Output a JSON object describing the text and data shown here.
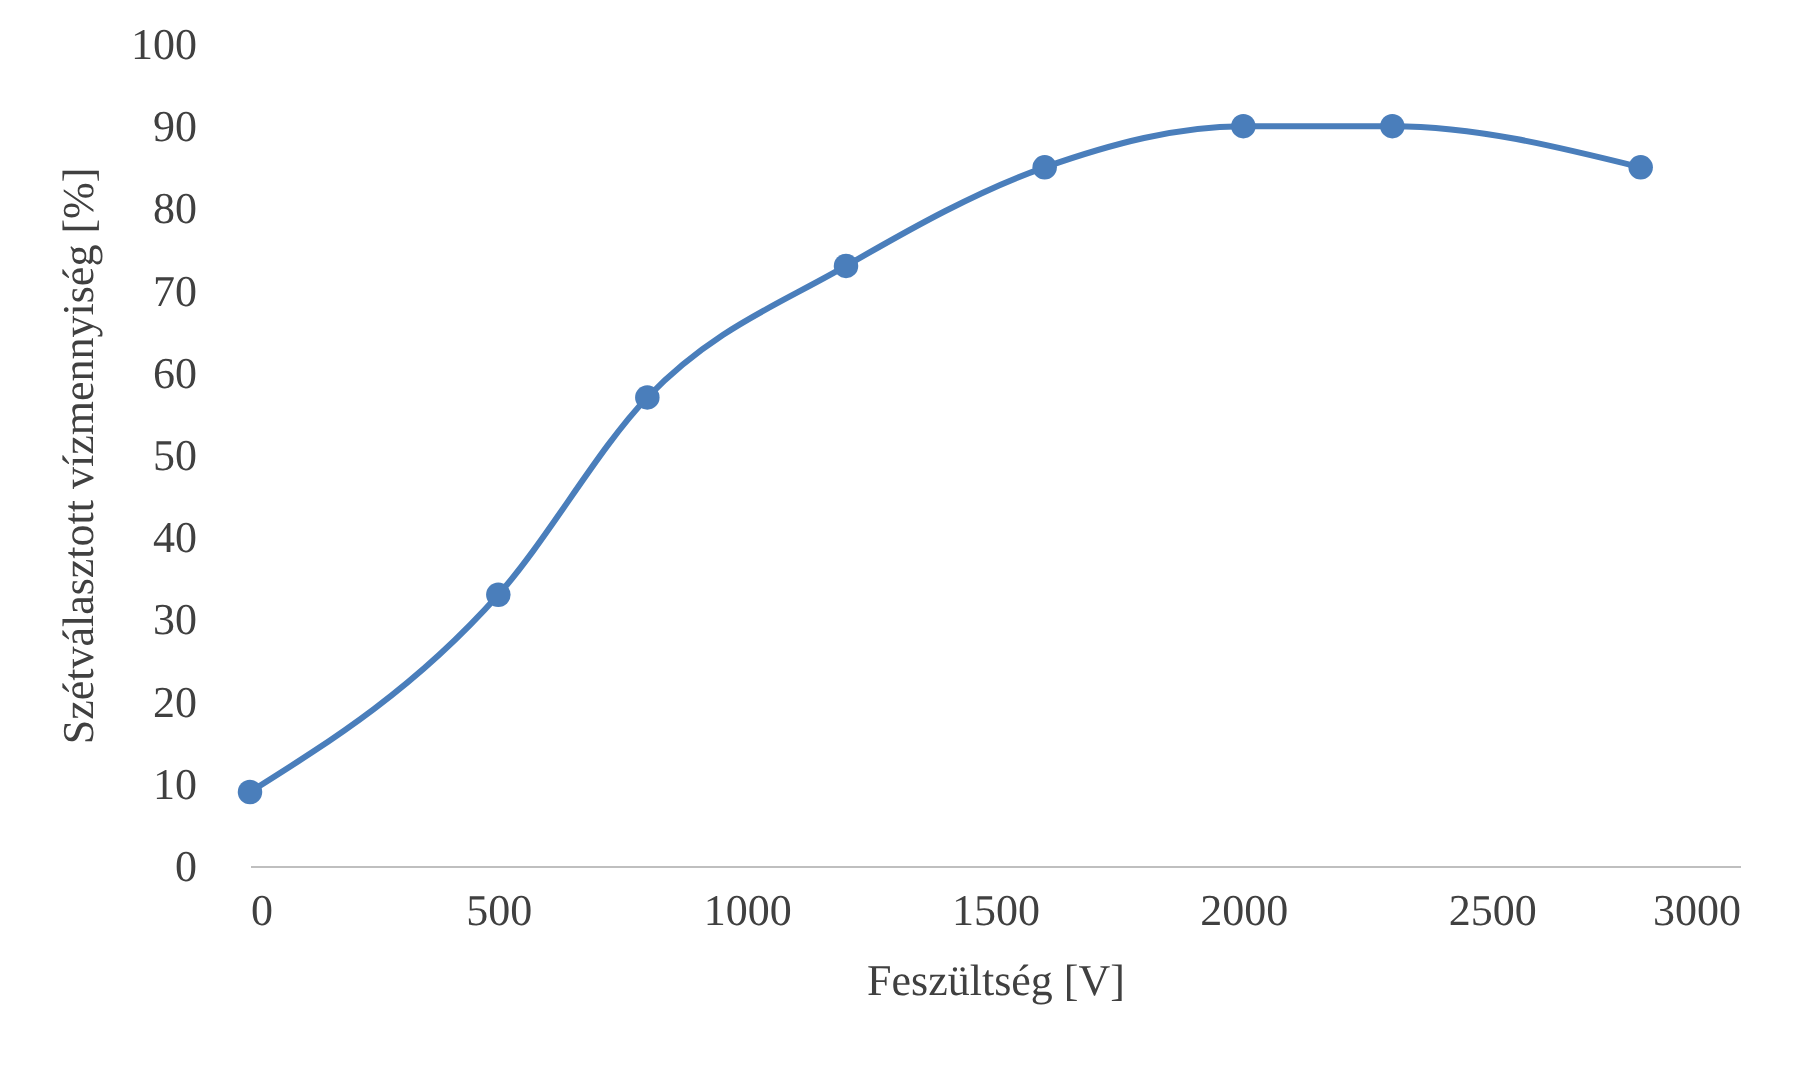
{
  "chart_data": {
    "type": "line",
    "xlabel": "Feszültség [V]",
    "ylabel": "Szétválasztott vízmennyiség [%]",
    "x": [
      0,
      500,
      800,
      1200,
      1600,
      2000,
      2300,
      2800
    ],
    "series": [
      {
        "color": "#4a7ebb",
        "values": [
          9,
          33,
          57,
          73,
          85,
          90,
          90,
          85
        ]
      }
    ],
    "xlim": [
      0,
      3000
    ],
    "xticks": [
      0,
      500,
      1000,
      1500,
      2000,
      2500,
      3000
    ],
    "ylim": [
      0,
      100
    ],
    "yticks": [
      0,
      10,
      20,
      30,
      40,
      50,
      60,
      70,
      80,
      90,
      100
    ],
    "marker": "circle",
    "line_style": "solid"
  }
}
